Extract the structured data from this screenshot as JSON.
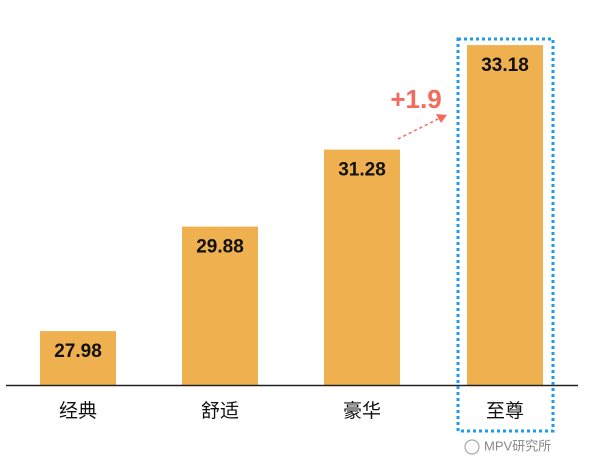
{
  "chart_data": {
    "type": "bar",
    "categories": [
      "经典",
      "舒适",
      "豪华",
      "至尊"
    ],
    "values": [
      27.98,
      29.88,
      31.28,
      33.18
    ],
    "color": "#efb04f",
    "ylim": [
      27,
      34
    ],
    "annotation": "+1.9",
    "watermark": "MPV研究所"
  }
}
